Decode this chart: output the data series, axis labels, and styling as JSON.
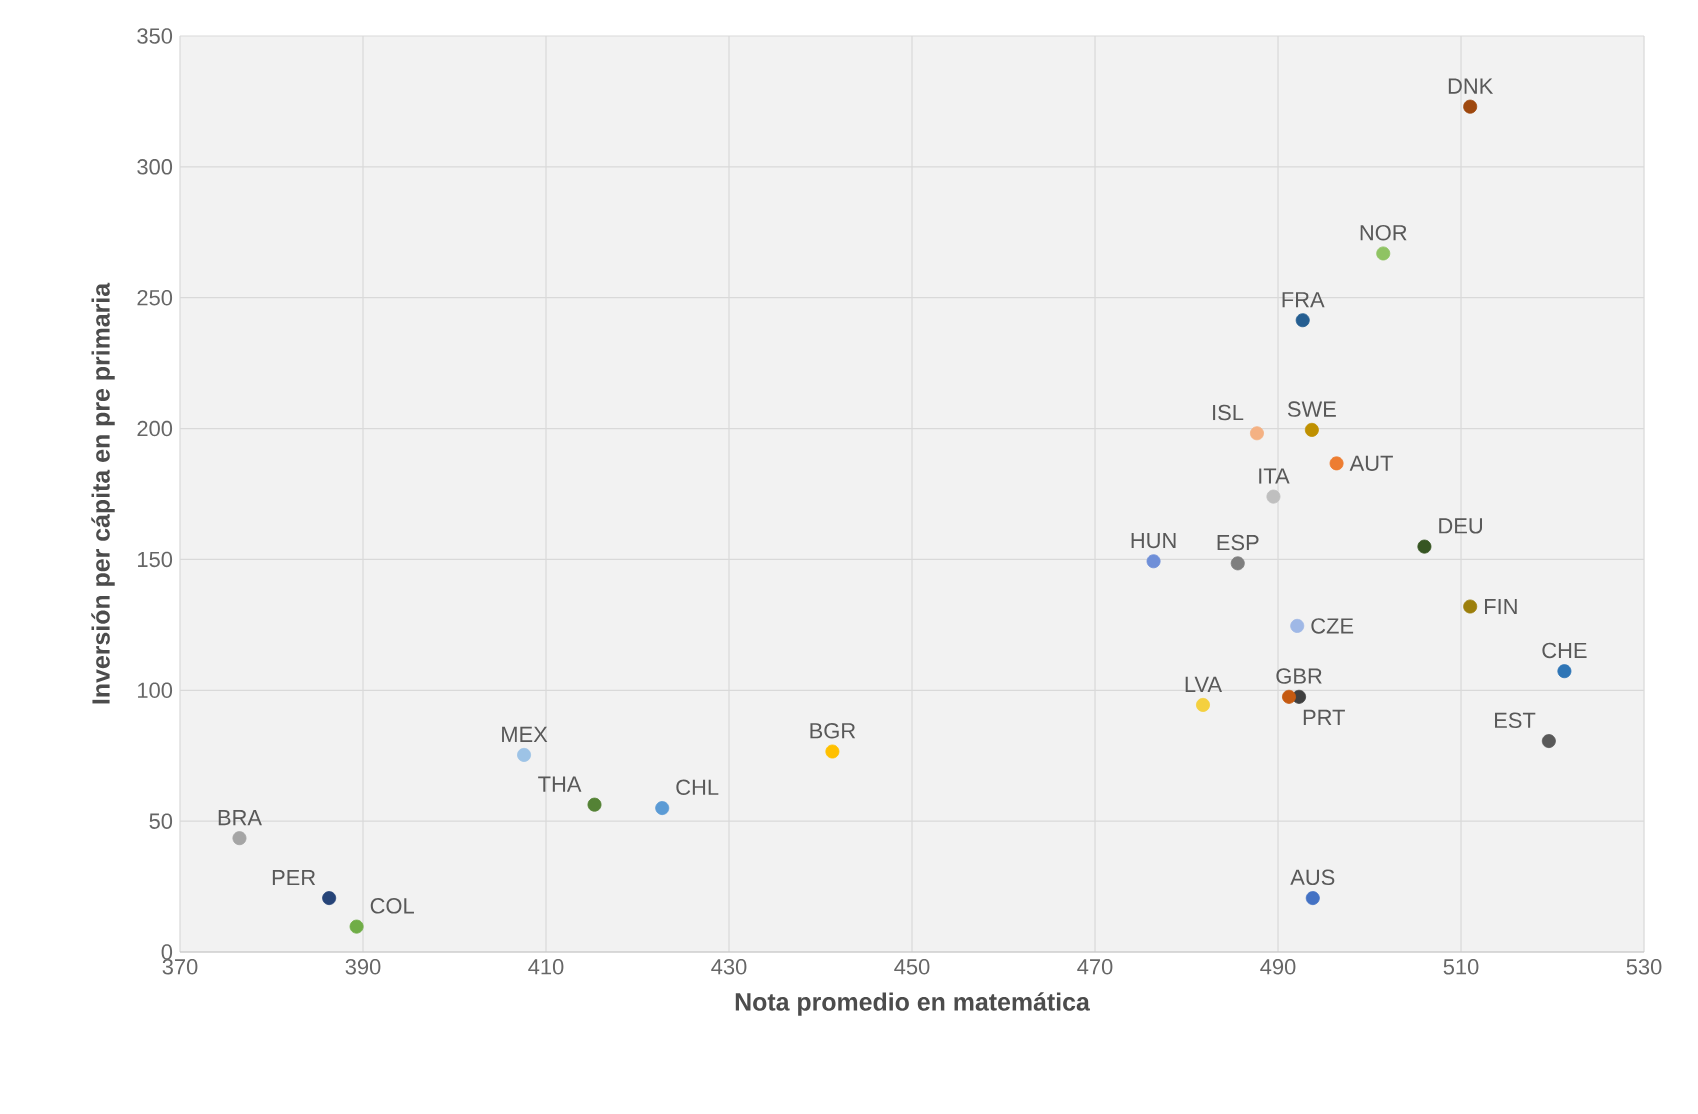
{
  "chart_data": {
    "type": "scatter",
    "xlabel": "Nota promedio en matemática",
    "ylabel": "Inversión per cápita en pre primaria",
    "xlim": [
      370,
      530
    ],
    "ylim": [
      0,
      350
    ],
    "xticks": [
      370,
      390,
      410,
      430,
      450,
      470,
      490,
      510,
      530
    ],
    "yticks": [
      0,
      50,
      100,
      150,
      200,
      250,
      300,
      350
    ],
    "grid": true,
    "marker": "circle",
    "series": [
      {
        "name": "BRA",
        "color": "#a5a5a5",
        "x": [
          376.5
        ],
        "values": [
          43.5
        ]
      },
      {
        "name": "PER",
        "color": "#264478",
        "x": [
          386.3
        ],
        "values": [
          20.6
        ]
      },
      {
        "name": "COL",
        "color": "#70ad47",
        "x": [
          389.3
        ],
        "values": [
          9.7
        ]
      },
      {
        "name": "MEX",
        "color": "#9dc3e6",
        "x": [
          407.6
        ],
        "values": [
          75.3
        ]
      },
      {
        "name": "THA",
        "color": "#548235",
        "x": [
          415.3
        ],
        "values": [
          56.3
        ]
      },
      {
        "name": "CHL",
        "color": "#5b9bd5",
        "x": [
          422.7
        ],
        "values": [
          55
        ]
      },
      {
        "name": "BGR",
        "color": "#ffc000",
        "x": [
          441.3
        ],
        "values": [
          76.6
        ]
      },
      {
        "name": "HUN",
        "color": "#6f8fd8",
        "x": [
          476.4
        ],
        "values": [
          149.3
        ]
      },
      {
        "name": "ESP",
        "color": "#7f7f7f",
        "x": [
          485.6
        ],
        "values": [
          148.5
        ]
      },
      {
        "name": "ISL",
        "color": "#f4b183",
        "x": [
          487.7
        ],
        "values": [
          198.2
        ]
      },
      {
        "name": "ITA",
        "color": "#bfbfbf",
        "x": [
          489.5
        ],
        "values": [
          174
        ]
      },
      {
        "name": "LVA",
        "color": "#f4d03f",
        "x": [
          481.8
        ],
        "values": [
          94.4
        ]
      },
      {
        "name": "CZE",
        "color": "#9fb8e6",
        "x": [
          492.1
        ],
        "values": [
          124.6
        ]
      },
      {
        "name": "GBR",
        "color": "#404040",
        "x": [
          492.3
        ],
        "values": [
          97.5
        ]
      },
      {
        "name": "PRT",
        "color": "#c55a11",
        "x": [
          491.2
        ],
        "values": [
          97.5
        ]
      },
      {
        "name": "FRA",
        "color": "#255e91",
        "x": [
          492.7
        ],
        "values": [
          241.4
        ]
      },
      {
        "name": "SWE",
        "color": "#bf9000",
        "x": [
          493.7
        ],
        "values": [
          199.5
        ]
      },
      {
        "name": "AUS",
        "color": "#4472c4",
        "x": [
          493.8
        ],
        "values": [
          20.6
        ]
      },
      {
        "name": "AUT",
        "color": "#ed7d31",
        "x": [
          496.4
        ],
        "values": [
          186.7
        ]
      },
      {
        "name": "NOR",
        "color": "#8fc363",
        "x": [
          501.5
        ],
        "values": [
          266.9
        ]
      },
      {
        "name": "DEU",
        "color": "#375623",
        "x": [
          506
        ],
        "values": [
          154.9
        ]
      },
      {
        "name": "FIN",
        "color": "#9c7f0c",
        "x": [
          511
        ],
        "values": [
          132
        ]
      },
      {
        "name": "DNK",
        "color": "#9e480e",
        "x": [
          511
        ],
        "values": [
          323
        ]
      },
      {
        "name": "EST",
        "color": "#595959",
        "x": [
          519.6
        ],
        "values": [
          80.6
        ]
      },
      {
        "name": "CHE",
        "color": "#2e75b6",
        "x": [
          521.3
        ],
        "values": [
          107.3
        ]
      }
    ]
  }
}
